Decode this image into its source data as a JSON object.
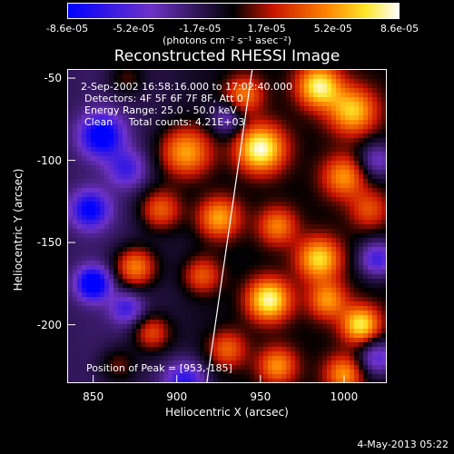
{
  "chart_data": {
    "type": "heatmap",
    "title": "Reconstructed RHESSI Image",
    "xlabel": "Heliocentric X (arcsec)",
    "ylabel": "Heliocentric Y (arcsec)",
    "x_ticks": [
      850,
      900,
      950,
      1000
    ],
    "y_ticks": [
      -50,
      -100,
      -150,
      -200
    ],
    "xlim": [
      835,
      1025
    ],
    "ylim": [
      -235,
      -45
    ],
    "colorbar": {
      "ticks": [
        "-8.6e-05",
        "-5.2e-05",
        "-1.7e-05",
        "1.7e-05",
        "5.2e-05",
        "8.6e-05"
      ],
      "units": "(photons cm⁻² s⁻¹ asec⁻²)",
      "range": [
        -8.6e-05,
        8.6e-05
      ]
    },
    "annotations": {
      "time_range": "2-Sep-2002 16:58:16.000 to 17:02:40.000",
      "detectors": "Detectors: 4F 5F 6F 7F 8F, Att 0",
      "energy_range": "Energy Range: 25.0 - 50.0 keV",
      "method_counts": "Clean     Total counts: 4.21E+03",
      "peak": "Position of Peak = [953,-185]"
    },
    "limb_line": {
      "x_top": 945,
      "x_bottom": 918
    },
    "blobs": [
      {
        "x": 950,
        "y": -93,
        "v": 1.0,
        "s": 10
      },
      {
        "x": 985,
        "y": -55,
        "v": 0.9,
        "s": 9
      },
      {
        "x": 1005,
        "y": -70,
        "v": 0.75,
        "s": 10
      },
      {
        "x": 985,
        "y": -160,
        "v": 0.8,
        "s": 9
      },
      {
        "x": 955,
        "y": -185,
        "v": 0.95,
        "s": 9
      },
      {
        "x": 990,
        "y": -185,
        "v": 0.6,
        "s": 8
      },
      {
        "x": 1010,
        "y": -200,
        "v": 0.85,
        "s": 8
      },
      {
        "x": 1000,
        "y": -230,
        "v": 0.6,
        "s": 8
      },
      {
        "x": 905,
        "y": -95,
        "v": 0.75,
        "s": 11
      },
      {
        "x": 890,
        "y": -130,
        "v": 0.6,
        "s": 9
      },
      {
        "x": 925,
        "y": -135,
        "v": 0.7,
        "s": 9
      },
      {
        "x": 875,
        "y": -165,
        "v": 0.75,
        "s": 9
      },
      {
        "x": 915,
        "y": -170,
        "v": 0.5,
        "s": 8
      },
      {
        "x": 885,
        "y": -205,
        "v": 0.55,
        "s": 8
      },
      {
        "x": 865,
        "y": -225,
        "v": 0.35,
        "s": 8
      },
      {
        "x": 870,
        "y": -50,
        "v": 0.3,
        "s": 8
      },
      {
        "x": 930,
        "y": -215,
        "v": 0.5,
        "s": 8
      },
      {
        "x": 960,
        "y": -225,
        "v": 0.6,
        "s": 8
      },
      {
        "x": 1015,
        "y": -130,
        "v": 0.4,
        "s": 8
      },
      {
        "x": 1000,
        "y": -110,
        "v": 0.6,
        "s": 9
      },
      {
        "x": 960,
        "y": -140,
        "v": 0.55,
        "s": 8
      },
      {
        "x": 940,
        "y": -60,
        "v": 0.55,
        "s": 8
      },
      {
        "x": 850,
        "y": -175,
        "v": -1.0,
        "s": 7
      },
      {
        "x": 855,
        "y": -85,
        "v": -0.9,
        "s": 9
      },
      {
        "x": 848,
        "y": -130,
        "v": -0.8,
        "s": 8
      },
      {
        "x": 870,
        "y": -105,
        "v": -0.5,
        "s": 8
      },
      {
        "x": 1020,
        "y": -100,
        "v": -0.5,
        "s": 8
      },
      {
        "x": 1020,
        "y": -160,
        "v": -0.7,
        "s": 8
      },
      {
        "x": 1020,
        "y": -220,
        "v": -0.6,
        "s": 8
      },
      {
        "x": 930,
        "y": -75,
        "v": -0.45,
        "s": 7
      },
      {
        "x": 870,
        "y": -190,
        "v": -0.5,
        "s": 7
      },
      {
        "x": 905,
        "y": -235,
        "v": -0.7,
        "s": 9
      }
    ]
  },
  "footer": {
    "timestamp": "4-May-2013 05:22"
  }
}
